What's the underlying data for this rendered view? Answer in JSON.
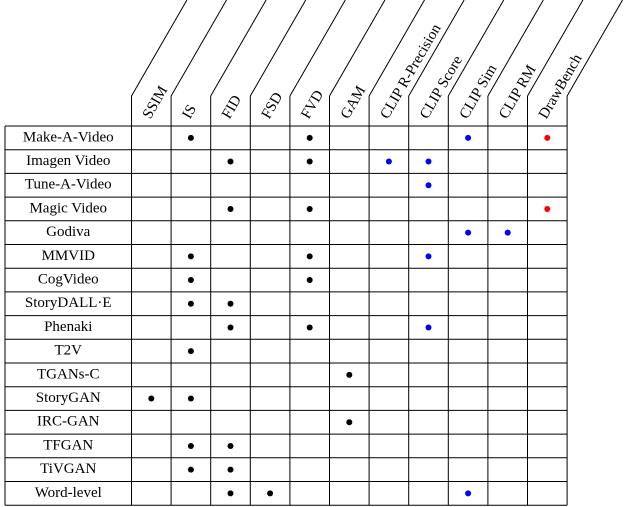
{
  "table": {
    "columns": [
      {
        "label": "SSIM",
        "color": "#000000"
      },
      {
        "label": "IS",
        "color": "#000000"
      },
      {
        "label": "FID",
        "color": "#000000"
      },
      {
        "label": "FSD",
        "color": "#000000"
      },
      {
        "label": "FVD",
        "color": "#000000"
      },
      {
        "label": "GAM",
        "color": "#000000"
      },
      {
        "label": "CLIP R-Precision",
        "color": "#0000ff"
      },
      {
        "label": "CLIP Score",
        "color": "#0000ff"
      },
      {
        "label": "CLIP Sim",
        "color": "#0000ff"
      },
      {
        "label": "CLIP RM",
        "color": "#0000ff"
      },
      {
        "label": "DrawBench",
        "color": "#ff0000"
      }
    ],
    "rows": [
      {
        "name": "Make-A-Video",
        "cells": [
          false,
          true,
          false,
          false,
          true,
          false,
          false,
          false,
          true,
          false,
          true
        ]
      },
      {
        "name": "Imagen Video",
        "cells": [
          false,
          false,
          true,
          false,
          true,
          false,
          true,
          true,
          false,
          false,
          false
        ]
      },
      {
        "name": "Tune-A-Video",
        "cells": [
          false,
          false,
          false,
          false,
          false,
          false,
          false,
          true,
          false,
          false,
          false
        ]
      },
      {
        "name": "Magic Video",
        "cells": [
          false,
          false,
          true,
          false,
          true,
          false,
          false,
          false,
          false,
          false,
          true
        ]
      },
      {
        "name": "Godiva",
        "cells": [
          false,
          false,
          false,
          false,
          false,
          false,
          false,
          false,
          true,
          true,
          false
        ]
      },
      {
        "name": "MMVID",
        "cells": [
          false,
          true,
          false,
          false,
          true,
          false,
          false,
          true,
          false,
          false,
          false
        ]
      },
      {
        "name": "CogVideo",
        "cells": [
          false,
          true,
          false,
          false,
          true,
          false,
          false,
          false,
          false,
          false,
          false
        ]
      },
      {
        "name": "StoryDALL·E",
        "cells": [
          false,
          true,
          true,
          false,
          false,
          false,
          false,
          false,
          false,
          false,
          false
        ]
      },
      {
        "name": "Phenaki",
        "cells": [
          false,
          false,
          true,
          false,
          true,
          false,
          false,
          true,
          false,
          false,
          false
        ]
      },
      {
        "name": "T2V",
        "cells": [
          false,
          true,
          false,
          false,
          false,
          false,
          false,
          false,
          false,
          false,
          false
        ]
      },
      {
        "name": "TGANs-C",
        "cells": [
          false,
          false,
          false,
          false,
          false,
          true,
          false,
          false,
          false,
          false,
          false
        ]
      },
      {
        "name": "StoryGAN",
        "cells": [
          true,
          true,
          false,
          false,
          false,
          false,
          false,
          false,
          false,
          false,
          false
        ]
      },
      {
        "name": "IRC-GAN",
        "cells": [
          false,
          false,
          false,
          false,
          false,
          true,
          false,
          false,
          false,
          false,
          false
        ]
      },
      {
        "name": "TFGAN",
        "cells": [
          false,
          true,
          true,
          false,
          false,
          false,
          false,
          false,
          false,
          false,
          false
        ]
      },
      {
        "name": "TiVGAN",
        "cells": [
          false,
          true,
          true,
          false,
          false,
          false,
          false,
          false,
          false,
          false,
          false
        ]
      },
      {
        "name": "Word-level",
        "cells": [
          false,
          false,
          true,
          true,
          false,
          false,
          false,
          false,
          true,
          false,
          false
        ]
      }
    ]
  }
}
